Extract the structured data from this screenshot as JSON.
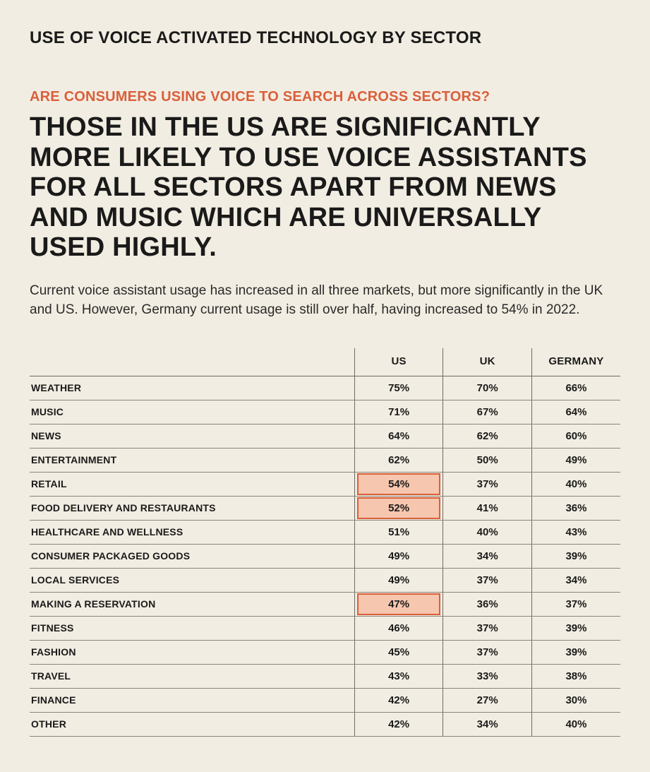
{
  "colors": {
    "background": "#f2ede2",
    "text": "#1a1a1a",
    "accent": "#d95f3b",
    "highlight_fill": "#f6c6ae",
    "highlight_border": "#d95f3b",
    "rule": "#8a8578"
  },
  "typography": {
    "page_title_pt": 24,
    "subhead_pt": 20,
    "headline_pt": 38,
    "body_pt": 19,
    "table_header_pt": 15,
    "row_label_pt": 14,
    "cell_pt": 15
  },
  "page_title": "USE OF VOICE ACTIVATED TECHNOLOGY BY SECTOR",
  "subhead": "ARE CONSUMERS USING VOICE TO SEARCH ACROSS SECTORS?",
  "headline": "THOSE IN THE US ARE SIGNIFICANTLY MORE LIKELY TO USE VOICE ASSISTANTS FOR ALL SECTORS APART FROM NEWS AND MUSIC WHICH ARE UNIVERSALLY USED HIGHLY.",
  "body_copy": "Current voice assistant usage has increased in all three markets, but more significantly in the UK and US. However, Germany current usage is still over half, having increased to 54% in 2022.",
  "table": {
    "type": "table",
    "columns": [
      "US",
      "UK",
      "GERMANY"
    ],
    "column_align": [
      "center",
      "center",
      "center"
    ],
    "label_col_width_pct": 55,
    "data_col_width_pct": 15,
    "rows": [
      {
        "label": "WEATHER",
        "values": [
          "75%",
          "70%",
          "66%"
        ],
        "highlight": [
          false,
          false,
          false
        ]
      },
      {
        "label": "MUSIC",
        "values": [
          "71%",
          "67%",
          "64%"
        ],
        "highlight": [
          false,
          false,
          false
        ]
      },
      {
        "label": "NEWS",
        "values": [
          "64%",
          "62%",
          "60%"
        ],
        "highlight": [
          false,
          false,
          false
        ]
      },
      {
        "label": "ENTERTAINMENT",
        "values": [
          "62%",
          "50%",
          "49%"
        ],
        "highlight": [
          false,
          false,
          false
        ]
      },
      {
        "label": "RETAIL",
        "values": [
          "54%",
          "37%",
          "40%"
        ],
        "highlight": [
          true,
          false,
          false
        ]
      },
      {
        "label": "FOOD DELIVERY AND RESTAURANTS",
        "values": [
          "52%",
          "41%",
          "36%"
        ],
        "highlight": [
          true,
          false,
          false
        ]
      },
      {
        "label": "HEALTHCARE AND WELLNESS",
        "values": [
          "51%",
          "40%",
          "43%"
        ],
        "highlight": [
          false,
          false,
          false
        ]
      },
      {
        "label": "CONSUMER PACKAGED GOODS",
        "values": [
          "49%",
          "34%",
          "39%"
        ],
        "highlight": [
          false,
          false,
          false
        ]
      },
      {
        "label": "LOCAL SERVICES",
        "values": [
          "49%",
          "37%",
          "34%"
        ],
        "highlight": [
          false,
          false,
          false
        ]
      },
      {
        "label": "MAKING A RESERVATION",
        "values": [
          "47%",
          "36%",
          "37%"
        ],
        "highlight": [
          true,
          false,
          false
        ]
      },
      {
        "label": "FITNESS",
        "values": [
          "46%",
          "37%",
          "39%"
        ],
        "highlight": [
          false,
          false,
          false
        ]
      },
      {
        "label": "FASHION",
        "values": [
          "45%",
          "37%",
          "39%"
        ],
        "highlight": [
          false,
          false,
          false
        ]
      },
      {
        "label": "TRAVEL",
        "values": [
          "43%",
          "33%",
          "38%"
        ],
        "highlight": [
          false,
          false,
          false
        ]
      },
      {
        "label": "FINANCE",
        "values": [
          "42%",
          "27%",
          "30%"
        ],
        "highlight": [
          false,
          false,
          false
        ]
      },
      {
        "label": "OTHER",
        "values": [
          "42%",
          "34%",
          "40%"
        ],
        "highlight": [
          false,
          false,
          false
        ]
      }
    ]
  }
}
